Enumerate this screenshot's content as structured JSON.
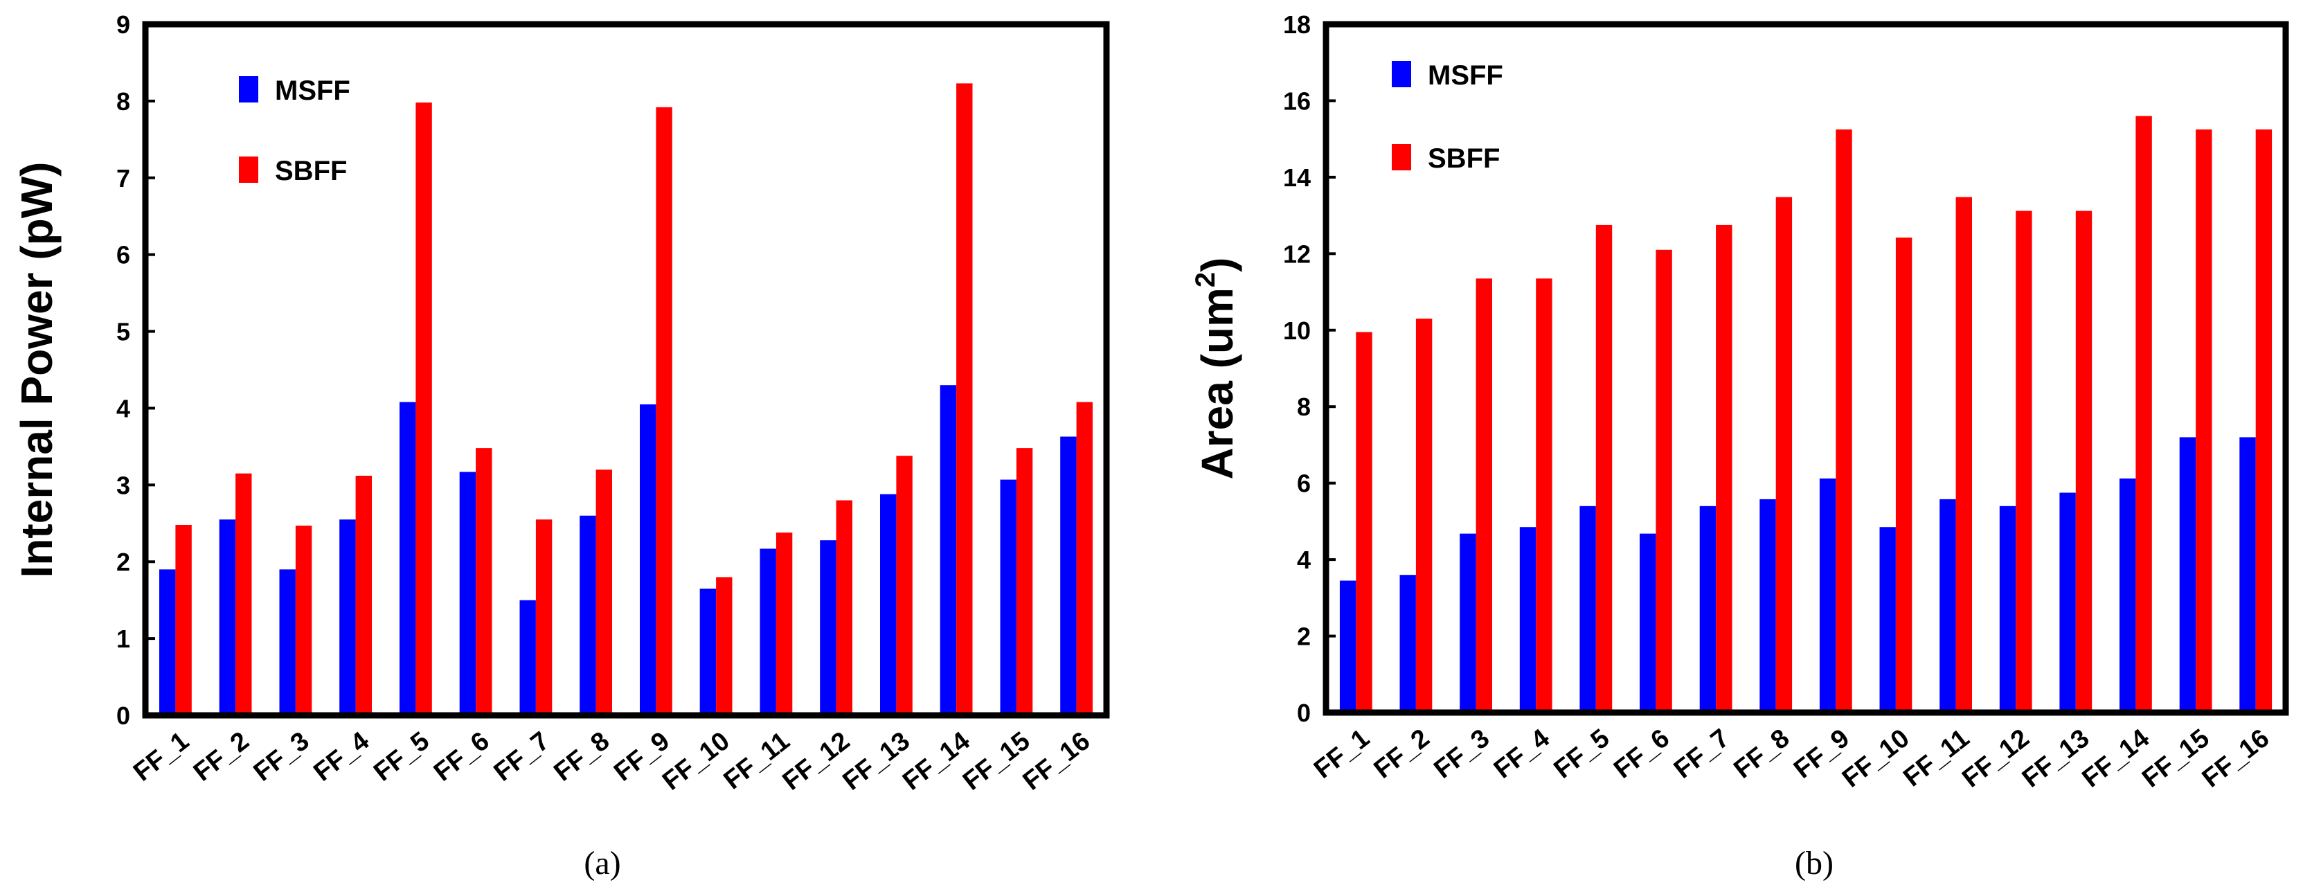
{
  "chart_data": [
    {
      "type": "bar",
      "panel_label": "(a)",
      "title": "",
      "xlabel": "",
      "ylabel": "Internal Power (pW)",
      "ylim": [
        0,
        9
      ],
      "yticks": [
        0,
        1,
        2,
        3,
        4,
        5,
        6,
        7,
        8,
        9
      ],
      "categories": [
        "FF_1",
        "FF_2",
        "FF_3",
        "FF_4",
        "FF_5",
        "FF_6",
        "FF_7",
        "FF_8",
        "FF_9",
        "FF_10",
        "FF_11",
        "FF_12",
        "FF_13",
        "FF_14",
        "FF_15",
        "FF_16"
      ],
      "series": [
        {
          "name": "MSFF",
          "color": "#0000ff",
          "values": [
            1.9,
            2.55,
            1.9,
            2.55,
            4.08,
            3.17,
            1.5,
            2.6,
            4.05,
            1.65,
            2.17,
            2.28,
            2.88,
            4.3,
            3.07,
            3.63
          ]
        },
        {
          "name": "SBFF",
          "color": "#ff0000",
          "values": [
            2.48,
            3.15,
            2.47,
            3.12,
            7.98,
            3.48,
            2.55,
            3.2,
            7.92,
            1.8,
            2.38,
            2.8,
            3.38,
            8.23,
            3.48,
            4.08
          ]
        }
      ],
      "legend": "top-left"
    },
    {
      "type": "bar",
      "panel_label": "(b)",
      "title": "",
      "xlabel": "",
      "ylabel": "Area (um",
      "ylabel_superscript": "2",
      "ylabel_close": ")",
      "ylim": [
        0,
        18
      ],
      "yticks": [
        0,
        2,
        4,
        6,
        8,
        10,
        12,
        14,
        16,
        18
      ],
      "categories": [
        "FF_1",
        "FF_2",
        "FF_3",
        "FF_4",
        "FF_5",
        "FF_6",
        "FF_7",
        "FF_8",
        "FF_9",
        "FF_10",
        "FF_11",
        "FF_12",
        "FF_13",
        "FF_14",
        "FF_15",
        "FF_16"
      ],
      "series": [
        {
          "name": "MSFF",
          "color": "#0000ff",
          "values": [
            3.45,
            3.6,
            4.68,
            4.85,
            5.4,
            4.68,
            5.4,
            5.58,
            6.12,
            4.85,
            5.58,
            5.4,
            5.75,
            6.12,
            7.2,
            7.2
          ]
        },
        {
          "name": "SBFF",
          "color": "#ff0000",
          "values": [
            9.95,
            10.3,
            11.35,
            11.35,
            12.75,
            12.1,
            12.75,
            13.48,
            15.25,
            12.42,
            13.48,
            13.12,
            13.12,
            15.6,
            15.25,
            15.25
          ]
        }
      ],
      "legend": "top-left"
    }
  ]
}
